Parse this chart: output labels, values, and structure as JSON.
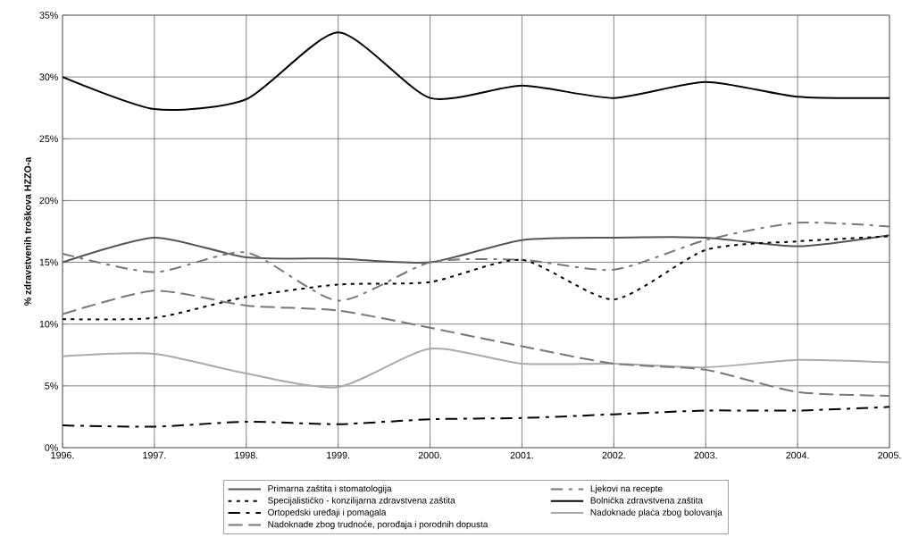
{
  "chart_data": {
    "type": "line",
    "ylabel": "% zdravstvenih troškova HZZO-a",
    "x": [
      1996,
      1997,
      1998,
      1999,
      2000,
      2001,
      2002,
      2003,
      2004,
      2005
    ],
    "series": [
      {
        "name": "Primarna zaštita i stomatologija",
        "color": "#555555",
        "line_style": "solid",
        "values": [
          15.0,
          17.0,
          15.4,
          15.3,
          15.0,
          16.8,
          17.0,
          17.0,
          16.3,
          17.2
        ]
      },
      {
        "name": "Ljekovi na recepte",
        "color": "#777777",
        "line_style": "dashdot",
        "values": [
          15.7,
          14.2,
          15.8,
          11.9,
          15.0,
          15.2,
          14.4,
          16.8,
          18.2,
          17.9
        ]
      },
      {
        "name": "Specijalističko - konzilijarna zdravstvena zaštita",
        "color": "#000000",
        "line_style": "dotted",
        "values": [
          10.4,
          10.5,
          12.2,
          13.2,
          13.4,
          15.2,
          12.0,
          16.0,
          16.7,
          17.1
        ]
      },
      {
        "name": "Bolnička zdravstvena zaštita",
        "color": "#000000",
        "line_style": "solid",
        "values": [
          30.0,
          27.4,
          28.2,
          33.6,
          28.3,
          29.3,
          28.3,
          29.6,
          28.4,
          28.3
        ]
      },
      {
        "name": "Ortopedski uređaji i pomagala",
        "color": "#000000",
        "line_style": "dashdot",
        "values": [
          1.8,
          1.7,
          2.1,
          1.9,
          2.3,
          2.4,
          2.7,
          3.0,
          3.0,
          3.3
        ]
      },
      {
        "name": "Nadoknade plaća zbog bolovanja",
        "color": "#aaaaaa",
        "line_style": "solid",
        "values": [
          7.4,
          7.6,
          6.0,
          4.9,
          8.0,
          6.8,
          6.8,
          6.5,
          7.1,
          6.9
        ]
      },
      {
        "name": "Nadoknade zbog trudnoće, porođaja i porodnih dopusta",
        "color": "#777777",
        "line_style": "dashed",
        "values": [
          10.8,
          12.7,
          11.5,
          11.1,
          9.7,
          8.2,
          6.8,
          6.3,
          4.5,
          4.2
        ]
      }
    ],
    "xlim": [
      1996,
      2005
    ],
    "xticks": [
      {
        "value": 1996,
        "label": "1996."
      },
      {
        "value": 1997,
        "label": "1997."
      },
      {
        "value": 1998,
        "label": "1998."
      },
      {
        "value": 1999,
        "label": "1999."
      },
      {
        "value": 2000,
        "label": "2000."
      },
      {
        "value": 2001,
        "label": "2001."
      },
      {
        "value": 2002,
        "label": "2002."
      },
      {
        "value": 2003,
        "label": "2003."
      },
      {
        "value": 2004,
        "label": "2004."
      },
      {
        "value": 2005,
        "label": "2005."
      }
    ],
    "ylim": [
      0,
      35
    ],
    "yticks": [
      {
        "value": 0,
        "label": "0%"
      },
      {
        "value": 5,
        "label": "5%"
      },
      {
        "value": 10,
        "label": "10%"
      },
      {
        "value": 15,
        "label": "15%"
      },
      {
        "value": 20,
        "label": "20%"
      },
      {
        "value": 25,
        "label": "25%"
      },
      {
        "value": 30,
        "label": "30%"
      },
      {
        "value": 35,
        "label": "35%"
      }
    ],
    "grid": true,
    "legend": "bottom",
    "marker": "none"
  }
}
